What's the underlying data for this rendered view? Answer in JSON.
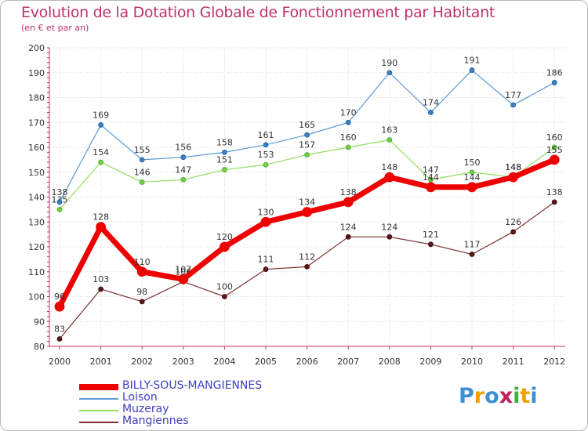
{
  "title": "Evolution de la Dotation Globale de Fonctionnement par Habitant",
  "subtitle": "(en € et par an)",
  "logo": {
    "letters": [
      "P",
      "r",
      "o",
      "x",
      "i",
      "t",
      "i"
    ],
    "colors": [
      "#3b8fd6",
      "#f0a000",
      "#3b8fd6",
      "#c02060",
      "#3bb03b",
      "#f0a000",
      "#3b8fd6"
    ]
  },
  "chart_data": {
    "type": "line",
    "title": "Evolution de la Dotation Globale de Fonctionnement par Habitant",
    "subtitle": "(en € et par an)",
    "xlabel": "",
    "ylabel": "",
    "x": [
      "2000",
      "2001",
      "2002",
      "2003",
      "2004",
      "2005",
      "2006",
      "2007",
      "2008",
      "2009",
      "2010",
      "2011",
      "2012"
    ],
    "ylim": [
      80,
      200
    ],
    "yticks": [
      80,
      90,
      100,
      110,
      120,
      130,
      140,
      150,
      160,
      170,
      180,
      190,
      200
    ],
    "grid": true,
    "legend_position": "bottom-left",
    "series": [
      {
        "name": "BILLY-SOUS-MANGIENNES",
        "color": "#ee0000",
        "values": [
          96,
          128,
          110,
          107,
          120,
          130,
          134,
          138,
          148,
          144,
          144,
          148,
          155
        ]
      },
      {
        "name": "Loison",
        "color": "#5b9bd5",
        "values": [
          138,
          169,
          155,
          156,
          158,
          161,
          165,
          170,
          190,
          174,
          191,
          177,
          186
        ]
      },
      {
        "name": "Muzeray",
        "color": "#90e060",
        "values": [
          135,
          154,
          146,
          147,
          151,
          153,
          157,
          160,
          163,
          147,
          150,
          148,
          160
        ]
      },
      {
        "name": "Mangiennes",
        "color": "#7a3030",
        "values": [
          83,
          103,
          98,
          106,
          100,
          111,
          112,
          124,
          124,
          121,
          117,
          126,
          138
        ]
      }
    ]
  }
}
